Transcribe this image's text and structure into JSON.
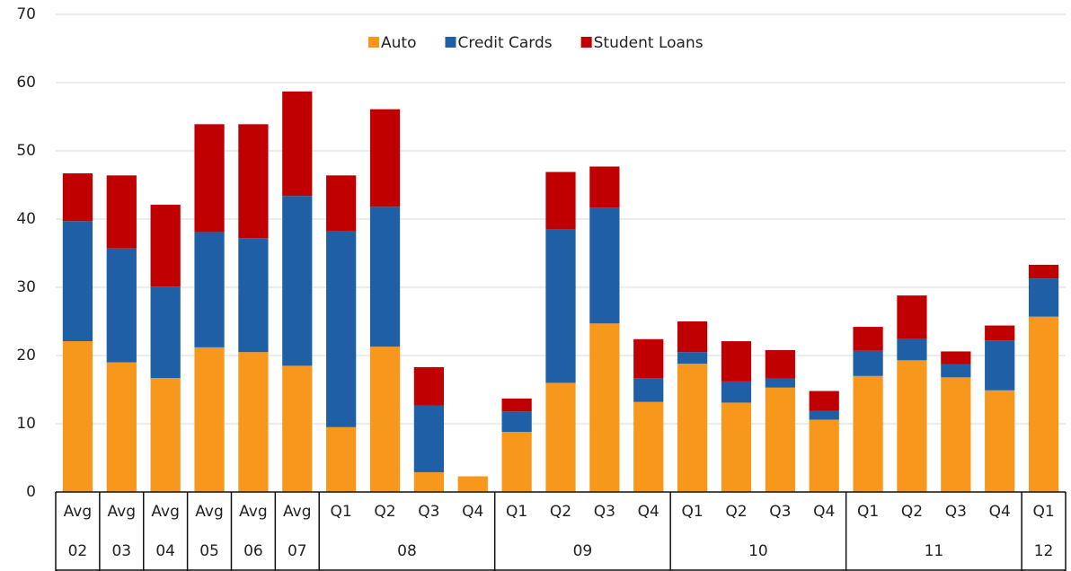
{
  "chart_data": {
    "type": "stacked_bar",
    "categories": [
      "Avg",
      "Avg",
      "Avg",
      "Avg",
      "Avg",
      "Avg",
      "Q1",
      "Q2",
      "Q3",
      "Q4",
      "Q1",
      "Q2",
      "Q3",
      "Q4",
      "Q1",
      "Q2",
      "Q3",
      "Q4",
      "Q1",
      "Q2",
      "Q3",
      "Q4",
      "Q1"
    ],
    "groups": [
      "02",
      "03",
      "04",
      "05",
      "06",
      "07",
      "08",
      null,
      null,
      null,
      "09",
      null,
      null,
      null,
      "10",
      null,
      null,
      null,
      "11",
      null,
      null,
      null,
      "12"
    ],
    "series": [
      {
        "name": "Auto",
        "color": "#f7981d",
        "values": [
          22.1,
          19,
          16.7,
          21.2,
          20.5,
          18.5,
          9.5,
          21.3,
          2.9,
          2.3,
          8.8,
          16,
          24.7,
          13.2,
          18.8,
          13.1,
          15.3,
          10.6,
          17,
          19.3,
          16.8,
          14.9,
          25.7
        ]
      },
      {
        "name": "Credit Cards",
        "color": "#1f5fa6",
        "values": [
          17.6,
          16.7,
          13.4,
          16.9,
          16.7,
          24.9,
          28.7,
          20.5,
          9.8,
          0,
          3.0,
          22.5,
          17,
          3.5,
          1.7,
          3.1,
          1.3,
          1.3,
          3.7,
          3.1,
          1.9,
          7.3,
          5.6
        ]
      },
      {
        "name": "Student Loans",
        "color": "#c00000",
        "values": [
          7.0,
          10.7,
          12.0,
          15.8,
          16.7,
          15.3,
          8.2,
          14.3,
          5.6,
          0,
          1.9,
          8.4,
          6.0,
          5.7,
          4.5,
          5.9,
          4.2,
          2.9,
          3.5,
          6.4,
          1.9,
          2.2,
          2.0
        ]
      }
    ],
    "ylim": [
      0,
      70
    ],
    "yticks": [
      0,
      10,
      20,
      30,
      40,
      50,
      60,
      70
    ],
    "grid": true,
    "legend": "top"
  }
}
